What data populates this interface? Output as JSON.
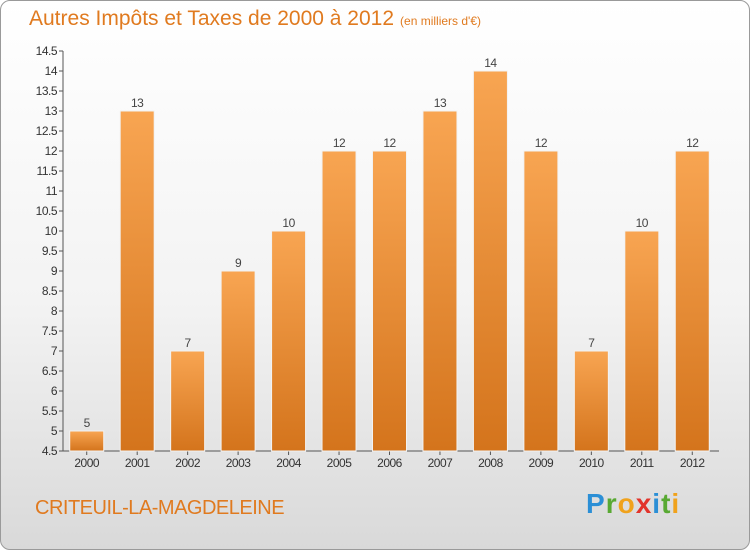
{
  "header": {
    "title": "Autres Impôts et Taxes de 2000 à 2012",
    "unit": "(en milliers d'€)"
  },
  "footer": {
    "commune": "CRITEUIL-LA-MAGDELEINE",
    "logo_letters": [
      {
        "char": "P",
        "color": "#2b8fd6"
      },
      {
        "char": "r",
        "color": "#58a932"
      },
      {
        "char": "o",
        "color": "#f0a21c"
      },
      {
        "char": "x",
        "color": "#e2342b"
      },
      {
        "char": "i",
        "color": "#2b8fd6"
      },
      {
        "char": "t",
        "color": "#58a932"
      },
      {
        "char": "i",
        "color": "#f0a21c"
      }
    ]
  },
  "colors": {
    "accent": "#e07a1f",
    "bar_top": "#f8a552",
    "bar_bottom": "#d4741c"
  },
  "chart_data": {
    "type": "bar",
    "categories": [
      "2000",
      "2001",
      "2002",
      "2003",
      "2004",
      "2005",
      "2006",
      "2007",
      "2008",
      "2009",
      "2010",
      "2011",
      "2012"
    ],
    "values": [
      5,
      13,
      7,
      9,
      10,
      12,
      12,
      13,
      14,
      12,
      7,
      10,
      12
    ],
    "ylim": [
      4.5,
      14.5
    ],
    "yticks": [
      "4.5",
      "5",
      "5.5",
      "6",
      "6.5",
      "7",
      "7.5",
      "8",
      "8.5",
      "9",
      "9.5",
      "10",
      "10.5",
      "11",
      "11.5",
      "12",
      "12.5",
      "13",
      "13.5",
      "14",
      "14.5"
    ],
    "grid": false,
    "legend": "none"
  }
}
